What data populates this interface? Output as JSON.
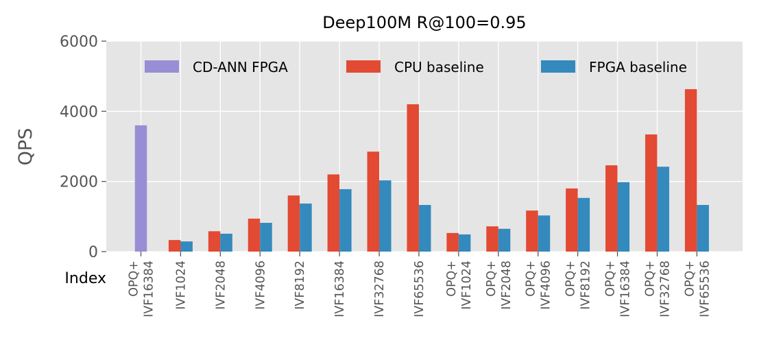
{
  "chart_data": {
    "type": "bar",
    "title": "Deep100M R@100=0.95",
    "xlabel": "Index",
    "ylabel": "QPS",
    "ylim": [
      0,
      6000
    ],
    "yticks": [
      0,
      2000,
      4000,
      6000
    ],
    "grid": true,
    "legend_position": "top",
    "categories": [
      [
        "OPQ+",
        "IVF16384"
      ],
      [
        "IVF1024"
      ],
      [
        "IVF2048"
      ],
      [
        "IVF4096"
      ],
      [
        "IVF8192"
      ],
      [
        "IVF16384"
      ],
      [
        "IVF32768"
      ],
      [
        "IVF65536"
      ],
      [
        "OPQ+",
        "IVF1024"
      ],
      [
        "OPQ+",
        "IVF2048"
      ],
      [
        "OPQ+",
        "IVF4096"
      ],
      [
        "OPQ+",
        "IVF8192"
      ],
      [
        "OPQ+",
        "IVF16384"
      ],
      [
        "OPQ+",
        "IVF32768"
      ],
      [
        "OPQ+",
        "IVF65536"
      ]
    ],
    "series": [
      {
        "name": "CD-ANN FPGA",
        "color": "#988ED5",
        "values": [
          3600,
          null,
          null,
          null,
          null,
          null,
          null,
          null,
          null,
          null,
          null,
          null,
          null,
          null,
          null
        ]
      },
      {
        "name": "CPU baseline",
        "color": "#E24A33",
        "values": [
          null,
          330,
          580,
          940,
          1600,
          2200,
          2850,
          4200,
          530,
          720,
          1170,
          1800,
          2460,
          3340,
          4630
        ]
      },
      {
        "name": "FPGA baseline",
        "color": "#348ABD",
        "values": [
          null,
          290,
          510,
          820,
          1370,
          1780,
          2030,
          1330,
          490,
          650,
          1030,
          1530,
          1980,
          2420,
          1330
        ]
      }
    ]
  }
}
